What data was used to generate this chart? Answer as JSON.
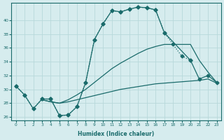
{
  "xlabel": "Humidex (Indice chaleur)",
  "bg_color": "#d6ecee",
  "line_color": "#1a6b6b",
  "grid_color": "#b8d8da",
  "xlim": [
    -0.5,
    23.5
  ],
  "ylim": [
    25.5,
    42.5
  ],
  "xticks": [
    0,
    1,
    2,
    3,
    4,
    5,
    6,
    7,
    8,
    9,
    10,
    11,
    12,
    13,
    14,
    15,
    16,
    17,
    18,
    19,
    20,
    21,
    22,
    23
  ],
  "yticks": [
    26,
    28,
    30,
    32,
    34,
    36,
    38,
    40
  ],
  "line1_x": [
    0,
    1,
    2,
    3,
    4,
    5,
    6,
    7,
    8,
    9,
    10,
    11,
    12,
    13,
    14,
    15,
    16,
    17,
    18,
    19,
    20
  ],
  "line1_y": [
    30.5,
    29.2,
    27.2,
    28.6,
    28.6,
    26.2,
    26.3,
    27.5,
    31.0,
    37.2,
    39.5,
    41.4,
    41.2,
    41.6,
    41.9,
    41.8,
    41.5,
    38.2,
    36.5,
    34.8,
    34.2
  ],
  "line2_x": [
    0,
    1,
    2,
    3,
    4,
    5,
    6,
    7,
    8,
    9,
    10,
    11,
    12,
    13,
    14,
    15,
    16,
    17,
    20,
    21,
    22,
    23
  ],
  "line2_y": [
    30.5,
    29.2,
    27.2,
    28.6,
    28.6,
    26.2,
    26.3,
    27.5,
    31.0,
    37.2,
    39.5,
    41.4,
    41.2,
    41.6,
    41.9,
    41.8,
    41.5,
    38.2,
    34.2,
    31.5,
    32.0,
    31.0
  ],
  "line3_x": [
    3,
    4,
    5,
    6,
    7,
    8,
    9,
    10,
    11,
    12,
    13,
    14,
    15,
    16,
    17,
    18,
    19,
    20,
    21,
    22,
    23
  ],
  "line3_y": [
    28.5,
    28.2,
    28.0,
    28.2,
    28.5,
    28.8,
    29.1,
    29.4,
    29.7,
    30.0,
    30.2,
    30.4,
    30.6,
    30.8,
    30.9,
    31.0,
    31.1,
    31.2,
    31.3,
    31.5,
    30.9
  ],
  "line4_x": [
    3,
    4,
    5,
    6,
    7,
    8,
    9,
    10,
    11,
    12,
    13,
    14,
    15,
    16,
    17,
    18,
    19,
    20,
    21,
    22,
    23
  ],
  "line4_y": [
    28.5,
    28.2,
    28.0,
    28.5,
    29.2,
    30.0,
    31.0,
    32.0,
    33.0,
    33.8,
    34.5,
    35.2,
    35.8,
    36.2,
    36.5,
    36.5,
    36.5,
    36.5,
    34.2,
    32.5,
    31.0
  ]
}
